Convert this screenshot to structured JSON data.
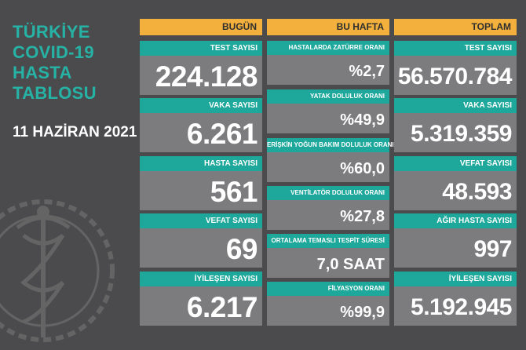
{
  "title": {
    "lines": [
      "TÜRKİYE",
      "COVID-19",
      "HASTA",
      "TABLOSU"
    ]
  },
  "date": "11 HAZİRAN 2021",
  "columns": {
    "today": {
      "header": "BUGÜN",
      "cards": [
        {
          "label": "TEST SAYISI",
          "value": "224.128"
        },
        {
          "label": "VAKA SAYISI",
          "value": "6.261"
        },
        {
          "label": "HASTA SAYISI",
          "value": "561"
        },
        {
          "label": "VEFAT SAYISI",
          "value": "69"
        },
        {
          "label": "İYİLEŞEN SAYISI",
          "value": "6.217"
        }
      ]
    },
    "week": {
      "header": "BU HAFTA",
      "cards": [
        {
          "label": "HASTALARDA ZATÜRRE ORANI",
          "value": "%2,7"
        },
        {
          "label": "YATAK DOLULUK ORANI",
          "value": "%49,9"
        },
        {
          "label": "ERİŞKİN YOĞUN BAKIM DOLULUK ORANI",
          "value": "%60,0"
        },
        {
          "label": "VENTİLATÖR DOLULUK ORANI",
          "value": "%27,8"
        },
        {
          "label": "ORTALAMA TEMASLI TESPİT SÜRESİ",
          "value": "7,0 SAAT"
        },
        {
          "label": "FİLYASYON ORANI",
          "value": "%99,9"
        }
      ]
    },
    "total": {
      "header": "TOPLAM",
      "cards": [
        {
          "label": "TEST SAYISI",
          "value": "56.570.784"
        },
        {
          "label": "VAKA SAYISI",
          "value": "5.319.359"
        },
        {
          "label": "VEFAT SAYISI",
          "value": "48.593"
        },
        {
          "label": "AĞIR HASTA SAYISI",
          "value": "997"
        },
        {
          "label": "İYİLEŞEN SAYISI",
          "value": "5.192.945"
        }
      ]
    }
  },
  "colors": {
    "background": "#4b4b4d",
    "header": "#f3b03d",
    "label": "#1ea89c",
    "value_box": "#7c7c7e",
    "title": "#26b3a6"
  },
  "icons": {
    "emblem": "ministry-emblem-icon"
  }
}
